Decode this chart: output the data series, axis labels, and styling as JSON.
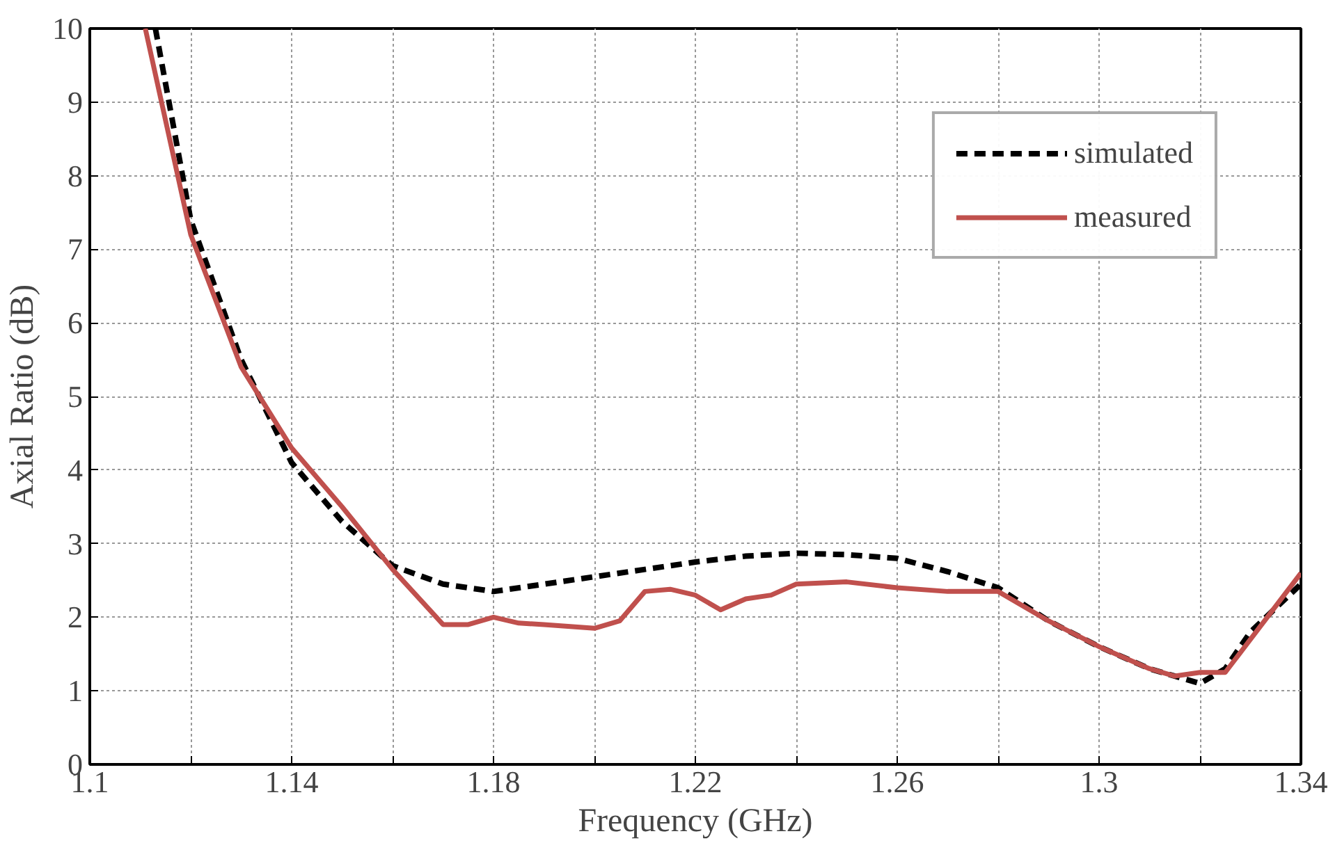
{
  "chart_data": {
    "type": "line",
    "xlabel": "Frequency (GHz)",
    "ylabel": "Axial Ratio (dB)",
    "xlim": [
      1.1,
      1.34
    ],
    "ylim": [
      0,
      10
    ],
    "xticks": [
      1.1,
      {
        "value": 1.12,
        "label": null
      },
      1.14,
      {
        "value": 1.16,
        "label": null
      },
      1.18,
      {
        "value": 1.2,
        "label": null
      },
      1.22,
      {
        "value": 1.24,
        "label": null
      },
      1.26,
      {
        "value": 1.28,
        "label": null
      },
      1.3,
      {
        "value": 1.32,
        "label": null
      },
      1.34
    ],
    "yticks": [
      0,
      1,
      2,
      3,
      4,
      5,
      6,
      7,
      8,
      9,
      10
    ],
    "grid": true,
    "legend": "top right",
    "series": [
      {
        "name": "simulated",
        "color": "#000000",
        "line_style": "dashed",
        "x": [
          1.113,
          1.12,
          1.13,
          1.14,
          1.15,
          1.16,
          1.17,
          1.18,
          1.19,
          1.2,
          1.21,
          1.22,
          1.23,
          1.24,
          1.25,
          1.26,
          1.27,
          1.28,
          1.29,
          1.3,
          1.31,
          1.32,
          1.325,
          1.33,
          1.34
        ],
        "values": [
          10,
          7.4,
          5.5,
          4.1,
          3.3,
          2.7,
          2.45,
          2.35,
          2.45,
          2.55,
          2.65,
          2.75,
          2.83,
          2.87,
          2.85,
          2.8,
          2.62,
          2.4,
          1.95,
          1.6,
          1.3,
          1.1,
          1.3,
          1.8,
          2.45
        ]
      },
      {
        "name": "measured",
        "color": "#c0504d",
        "line_style": "solid",
        "x": [
          1.111,
          1.12,
          1.13,
          1.14,
          1.15,
          1.16,
          1.17,
          1.175,
          1.18,
          1.185,
          1.19,
          1.2,
          1.205,
          1.21,
          1.215,
          1.22,
          1.225,
          1.23,
          1.235,
          1.24,
          1.25,
          1.26,
          1.27,
          1.28,
          1.29,
          1.3,
          1.31,
          1.315,
          1.32,
          1.325,
          1.33,
          1.34
        ],
        "values": [
          10,
          7.2,
          5.4,
          4.3,
          3.5,
          2.65,
          1.9,
          1.9,
          2.0,
          1.92,
          1.9,
          1.85,
          1.95,
          2.35,
          2.38,
          2.3,
          2.1,
          2.25,
          2.3,
          2.45,
          2.48,
          2.4,
          2.35,
          2.35,
          1.95,
          1.6,
          1.3,
          1.2,
          1.25,
          1.25,
          1.7,
          2.6
        ]
      }
    ]
  }
}
